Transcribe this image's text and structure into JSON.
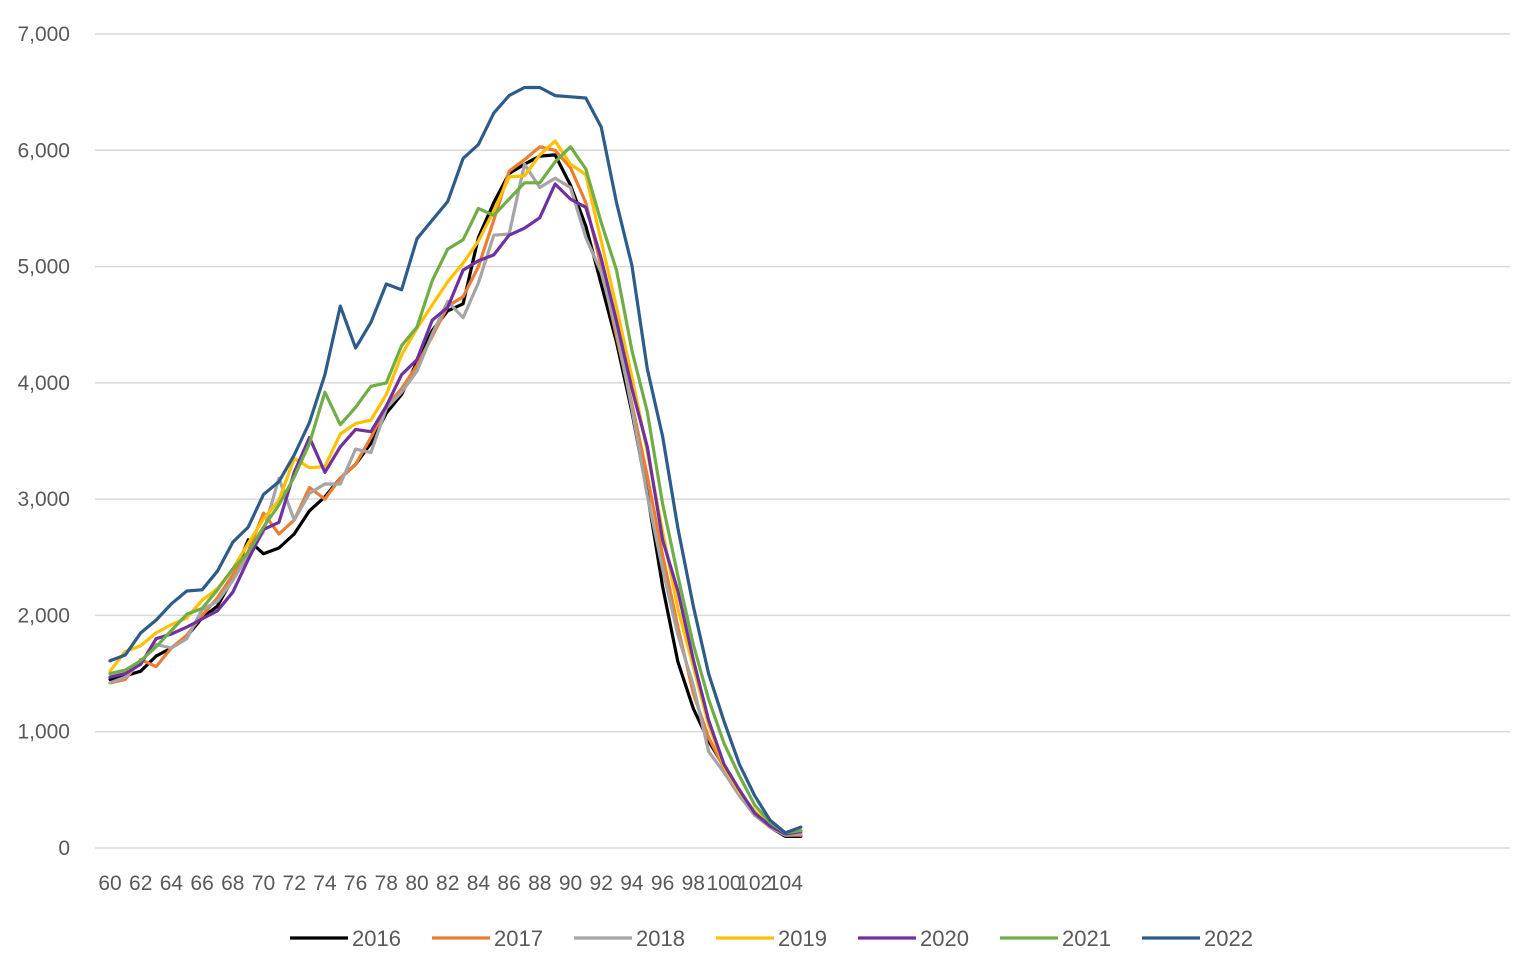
{
  "chart_data": {
    "type": "line",
    "title": "",
    "xlabel": "",
    "ylabel": "",
    "xlim": [
      60,
      105
    ],
    "ylim": [
      0,
      7000
    ],
    "grid": true,
    "legend_position": "bottom",
    "x": [
      60,
      61,
      62,
      63,
      64,
      65,
      66,
      67,
      68,
      69,
      70,
      71,
      72,
      73,
      74,
      75,
      76,
      77,
      78,
      79,
      80,
      81,
      82,
      83,
      84,
      85,
      86,
      87,
      88,
      89,
      90,
      91,
      92,
      93,
      94,
      95,
      96,
      97,
      98,
      99,
      100,
      101,
      102,
      103,
      104,
      105
    ],
    "x_tick_labels": [
      "60",
      "62",
      "64",
      "66",
      "68",
      "70",
      "72",
      "74",
      "76",
      "78",
      "80",
      "82",
      "84",
      "86",
      "88",
      "90",
      "92",
      "94",
      "96",
      "98",
      "100",
      "102",
      "104"
    ],
    "y_tick_labels": [
      "0",
      "1,000",
      "2,000",
      "3,000",
      "4,000",
      "5,000",
      "6,000",
      "7,000"
    ],
    "series": [
      {
        "name": "2016",
        "color": "#000000",
        "values": [
          1450,
          1480,
          1520,
          1650,
          1720,
          1820,
          1980,
          2080,
          2320,
          2650,
          2530,
          2580,
          2700,
          2900,
          3020,
          3180,
          3300,
          3480,
          3740,
          3900,
          4180,
          4450,
          4620,
          4680,
          5250,
          5550,
          5800,
          5880,
          5950,
          5960,
          5700,
          5350,
          4850,
          4350,
          3750,
          3050,
          2250,
          1600,
          1200,
          920,
          700,
          480,
          300,
          180,
          100,
          100
        ]
      },
      {
        "name": "2017",
        "color": "#ED7D31",
        "values": [
          1420,
          1450,
          1620,
          1560,
          1720,
          1830,
          2000,
          2150,
          2350,
          2550,
          2880,
          2700,
          2820,
          3100,
          3000,
          3180,
          3300,
          3530,
          3800,
          3950,
          4150,
          4400,
          4660,
          4740,
          5000,
          5400,
          5820,
          5920,
          6030,
          6000,
          5850,
          5550,
          5000,
          4400,
          3820,
          3200,
          2520,
          1900,
          1330,
          950,
          690,
          480,
          290,
          180,
          110,
          110
        ]
      },
      {
        "name": "2018",
        "color": "#A5A5A5",
        "values": [
          1420,
          1470,
          1600,
          1750,
          1720,
          1800,
          2050,
          2120,
          2300,
          2520,
          2720,
          3180,
          2820,
          3050,
          3130,
          3130,
          3430,
          3400,
          3780,
          3920,
          4100,
          4420,
          4700,
          4560,
          4860,
          5270,
          5280,
          5880,
          5680,
          5760,
          5680,
          5250,
          4950,
          4450,
          3780,
          3030,
          2400,
          1830,
          1400,
          830,
          650,
          450,
          280,
          180,
          110,
          120
        ]
      },
      {
        "name": "2019",
        "color": "#FFC000",
        "values": [
          1520,
          1690,
          1740,
          1850,
          1920,
          1980,
          2130,
          2230,
          2400,
          2620,
          2830,
          2990,
          3350,
          3270,
          3280,
          3560,
          3650,
          3680,
          3900,
          4240,
          4470,
          4670,
          4870,
          5030,
          5220,
          5480,
          5770,
          5780,
          5960,
          6080,
          5880,
          5790,
          5220,
          4650,
          4050,
          3410,
          2720,
          2060,
          1560,
          1060,
          700,
          480,
          320,
          190,
          120,
          140
        ]
      },
      {
        "name": "2020",
        "color": "#7030A0",
        "values": [
          1470,
          1500,
          1580,
          1800,
          1840,
          1900,
          1970,
          2040,
          2200,
          2480,
          2740,
          2800,
          3230,
          3530,
          3230,
          3450,
          3600,
          3580,
          3800,
          4070,
          4200,
          4540,
          4650,
          4970,
          5050,
          5100,
          5270,
          5330,
          5420,
          5710,
          5580,
          5510,
          5070,
          4530,
          3950,
          3450,
          2650,
          2210,
          1620,
          1100,
          720,
          500,
          300,
          190,
          120,
          140
        ]
      },
      {
        "name": "2021",
        "color": "#70AD47",
        "values": [
          1500,
          1530,
          1610,
          1730,
          1870,
          2010,
          2060,
          2220,
          2400,
          2540,
          2760,
          2950,
          3190,
          3480,
          3920,
          3640,
          3790,
          3970,
          4000,
          4320,
          4480,
          4880,
          5150,
          5230,
          5500,
          5440,
          5580,
          5720,
          5720,
          5900,
          6030,
          5840,
          5380,
          4970,
          4280,
          3750,
          2960,
          2340,
          1750,
          1280,
          900,
          620,
          370,
          220,
          130,
          150
        ]
      },
      {
        "name": "2022",
        "color": "#2E5C8A",
        "values": [
          1610,
          1660,
          1850,
          1960,
          2100,
          2210,
          2220,
          2380,
          2630,
          2760,
          3040,
          3150,
          3380,
          3660,
          4070,
          4660,
          4300,
          4520,
          4850,
          4800,
          5240,
          5400,
          5560,
          5930,
          6050,
          6320,
          6470,
          6540,
          6540,
          6470,
          6460,
          6450,
          6200,
          5550,
          5010,
          4120,
          3540,
          2750,
          2080,
          1500,
          1090,
          720,
          450,
          240,
          130,
          180
        ]
      }
    ]
  }
}
